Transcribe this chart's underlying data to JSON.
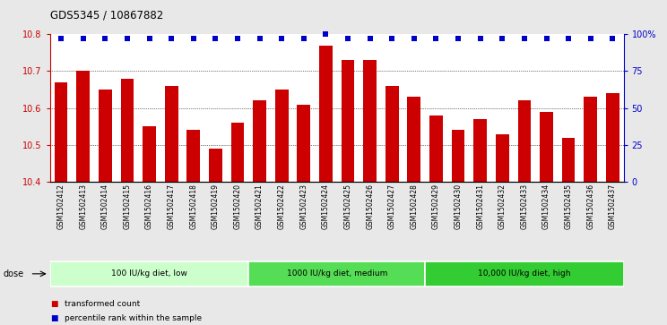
{
  "title": "GDS5345 / 10867882",
  "samples": [
    "GSM1502412",
    "GSM1502413",
    "GSM1502414",
    "GSM1502415",
    "GSM1502416",
    "GSM1502417",
    "GSM1502418",
    "GSM1502419",
    "GSM1502420",
    "GSM1502421",
    "GSM1502422",
    "GSM1502423",
    "GSM1502424",
    "GSM1502425",
    "GSM1502426",
    "GSM1502427",
    "GSM1502428",
    "GSM1502429",
    "GSM1502430",
    "GSM1502431",
    "GSM1502432",
    "GSM1502433",
    "GSM1502434",
    "GSM1502435",
    "GSM1502436",
    "GSM1502437"
  ],
  "bar_values": [
    10.67,
    10.7,
    10.65,
    10.68,
    10.55,
    10.66,
    10.54,
    10.49,
    10.56,
    10.62,
    10.65,
    10.61,
    10.77,
    10.73,
    10.73,
    10.66,
    10.63,
    10.58,
    10.54,
    10.57,
    10.53,
    10.62,
    10.59,
    10.52,
    10.63,
    10.64
  ],
  "percentile_values": [
    97,
    97,
    97,
    97,
    97,
    97,
    97,
    97,
    97,
    97,
    97,
    97,
    100,
    97,
    97,
    97,
    97,
    97,
    97,
    97,
    97,
    97,
    97,
    97,
    97,
    97
  ],
  "bar_color": "#cc0000",
  "percentile_color": "#0000cc",
  "ylim": [
    10.4,
    10.8
  ],
  "yticks": [
    10.4,
    10.5,
    10.6,
    10.7,
    10.8
  ],
  "y_right_ticks": [
    0,
    25,
    50,
    75,
    100
  ],
  "y_right_labels": [
    "0",
    "25",
    "50",
    "75",
    "100%"
  ],
  "groups": [
    {
      "label": "100 IU/kg diet, low",
      "start": 0,
      "end": 9,
      "color": "#ccffcc"
    },
    {
      "label": "1000 IU/kg diet, medium",
      "start": 9,
      "end": 17,
      "color": "#55dd55"
    },
    {
      "label": "10,000 IU/kg diet, high",
      "start": 17,
      "end": 26,
      "color": "#33cc33"
    }
  ],
  "legend_items": [
    {
      "label": "transformed count",
      "color": "#cc0000"
    },
    {
      "label": "percentile rank within the sample",
      "color": "#0000cc"
    }
  ],
  "background_color": "#e8e8e8",
  "plot_bg": "#ffffff",
  "grid_color": "#000000"
}
